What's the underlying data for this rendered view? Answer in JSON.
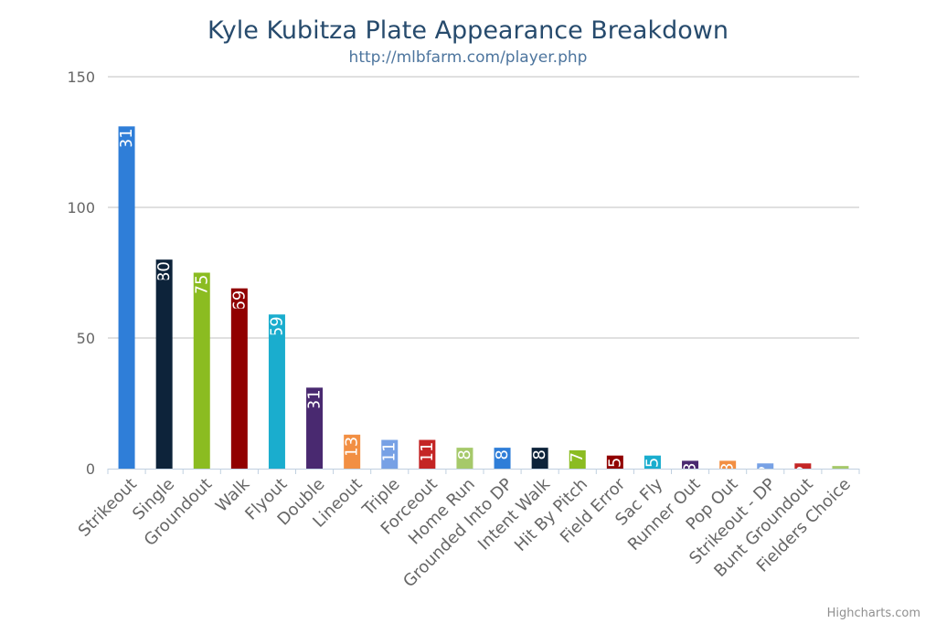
{
  "chart_data": {
    "type": "bar",
    "title": "Kyle Kubitza Plate Appearance Breakdown",
    "subtitle": "http://mlbfarm.com/player.php",
    "xlabel": "",
    "ylabel": "",
    "ylim": [
      0,
      150
    ],
    "yticks": [
      0,
      50,
      100,
      150
    ],
    "grid": true,
    "categories": [
      "Strikeout",
      "Single",
      "Groundout",
      "Walk",
      "Flyout",
      "Double",
      "Lineout",
      "Triple",
      "Forceout",
      "Home Run",
      "Grounded Into DP",
      "Intent Walk",
      "Hit By Pitch",
      "Field Error",
      "Sac Fly",
      "Runner Out",
      "Pop Out",
      "Strikeout - DP",
      "Bunt Groundout",
      "Fielders Choice"
    ],
    "values": [
      131,
      80,
      75,
      69,
      59,
      31,
      13,
      11,
      11,
      8,
      8,
      8,
      7,
      5,
      5,
      3,
      3,
      2,
      2,
      1
    ],
    "data_labels": [
      "131",
      "80",
      "75",
      "69",
      "59",
      "31",
      "13",
      "11",
      "11",
      "8",
      "8",
      "8",
      "7",
      "5",
      "5",
      "3",
      "3",
      "2",
      "2",
      "1"
    ],
    "colors": [
      "#2f7ed8",
      "#0d233a",
      "#8bbc21",
      "#910000",
      "#1aadce",
      "#492970",
      "#f28f43",
      "#77a1e5",
      "#c42525",
      "#a6c96a",
      "#2f7ed8",
      "#0d233a",
      "#8bbc21",
      "#910000",
      "#1aadce",
      "#492970",
      "#f28f43",
      "#77a1e5",
      "#c42525",
      "#a6c96a"
    ]
  },
  "credits": "Highcharts.com",
  "colors": {
    "title": "#274b6d",
    "subtitle": "#4d759e",
    "axis_labels": "#666666",
    "gridline": "#c0c0c0",
    "axis_line": "#c0d0e0"
  }
}
